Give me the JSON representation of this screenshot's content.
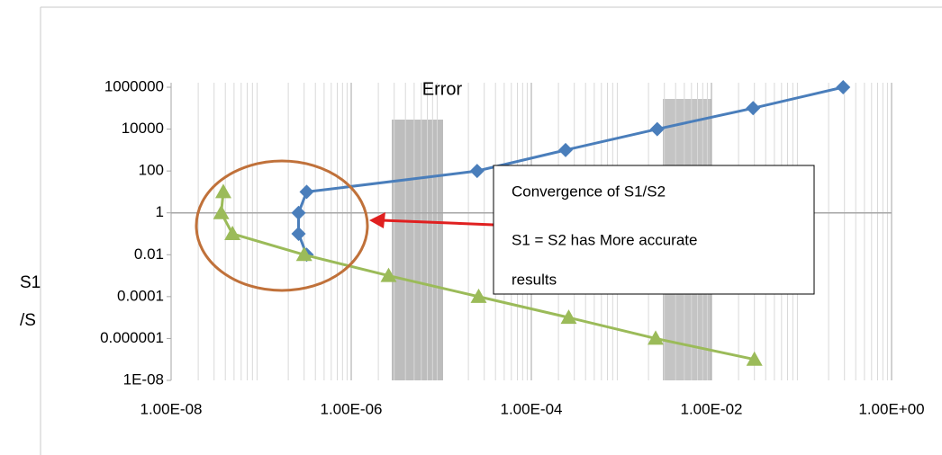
{
  "chart_data": {
    "type": "line",
    "log_x": true,
    "log_y": true,
    "grid": true,
    "annotation_top": "Error",
    "ylabel_lines": [
      "S1",
      "/S"
    ],
    "callout": [
      "Convergence of S1/S2",
      "S1 = S2 has More accurate",
      "results"
    ],
    "xlim": [
      1e-08,
      1
    ],
    "ylim": [
      1e-08,
      1000000
    ],
    "x_axis_crosses": 1,
    "xticks": [
      {
        "value": 1e-08,
        "label": "1.00E-08"
      },
      {
        "value": 1e-06,
        "label": "1.00E-06"
      },
      {
        "value": 0.0001,
        "label": "1.00E-04"
      },
      {
        "value": 0.01,
        "label": "1.00E-02"
      },
      {
        "value": 1,
        "label": "1.00E+00"
      }
    ],
    "yticks": [
      {
        "value": 1e-08,
        "label": "1E-08"
      },
      1e-06,
      0.0001,
      0.01,
      1,
      100,
      10000,
      1000000
    ],
    "series": [
      {
        "color": "#4a7ebb",
        "x": [
          3.2e-07,
          2.6e-07,
          2.6e-07,
          3.2e-07,
          2.5e-05,
          0.00024,
          0.0025,
          0.029,
          0.29
        ],
        "values": [
          0.01,
          0.1,
          1,
          10,
          100,
          1000,
          10000,
          100000,
          1000000
        ]
      },
      {
        "color": "#9bbb59",
        "x": [
          3.8e-08,
          3.6e-08,
          4.8e-08,
          3e-07,
          2.6e-06,
          2.6e-05,
          0.00026,
          0.0024,
          0.03
        ],
        "values": [
          10,
          1,
          0.1,
          0.01,
          0.001,
          0.0001,
          1e-05,
          1e-06,
          1e-07
        ]
      }
    ]
  }
}
